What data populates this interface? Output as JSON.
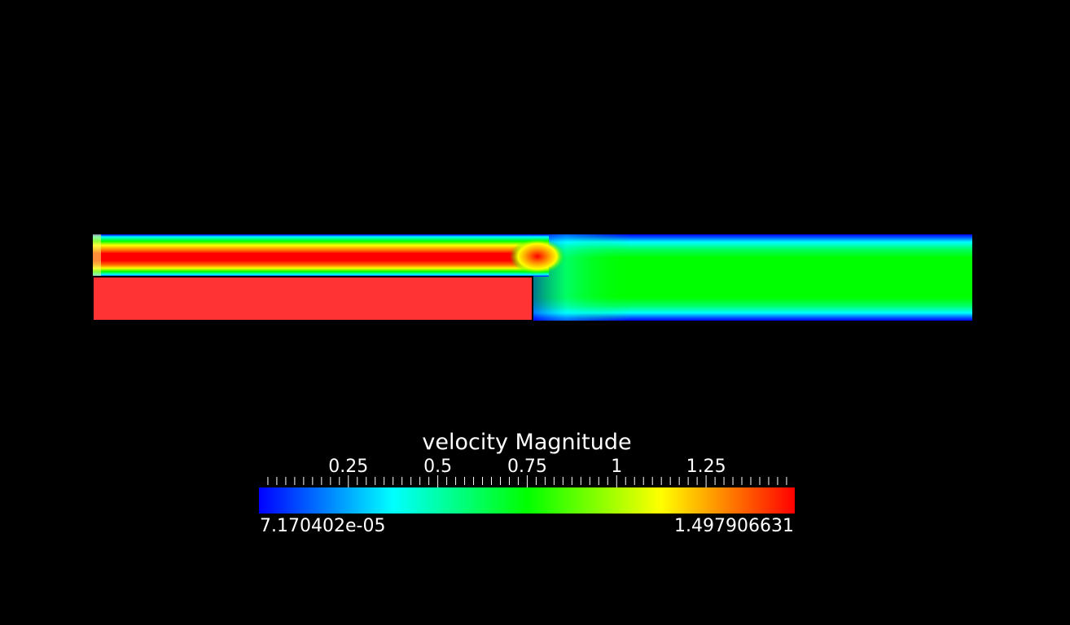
{
  "chart_data": {
    "type": "heatmap",
    "field": "velocity Magnitude",
    "title": "velocity Magnitude",
    "range": {
      "min": 7.170402e-05,
      "max": 1.497906631
    },
    "range_labels": {
      "min": "7.170402e-05",
      "max": "1.497906631"
    },
    "ticks": [
      {
        "value": 0.25,
        "label": "0.25"
      },
      {
        "value": 0.5,
        "label": "0.5"
      },
      {
        "value": 0.75,
        "label": "0.75"
      },
      {
        "value": 1,
        "label": "1"
      },
      {
        "value": 1.25,
        "label": "1.25"
      }
    ],
    "minor_tick_step": 0.025,
    "colormap": [
      "#0000ff",
      "#00ffff",
      "#00ff00",
      "#ffff00",
      "#ff0000"
    ],
    "regions": {
      "upper_channel_core_velocity": 1.45,
      "outlet_core_velocity": 0.75,
      "solid_block_color": "#ff3333"
    }
  },
  "colors": {
    "background": "#000000",
    "text": "#ffffff",
    "block_outline": "#000000"
  }
}
